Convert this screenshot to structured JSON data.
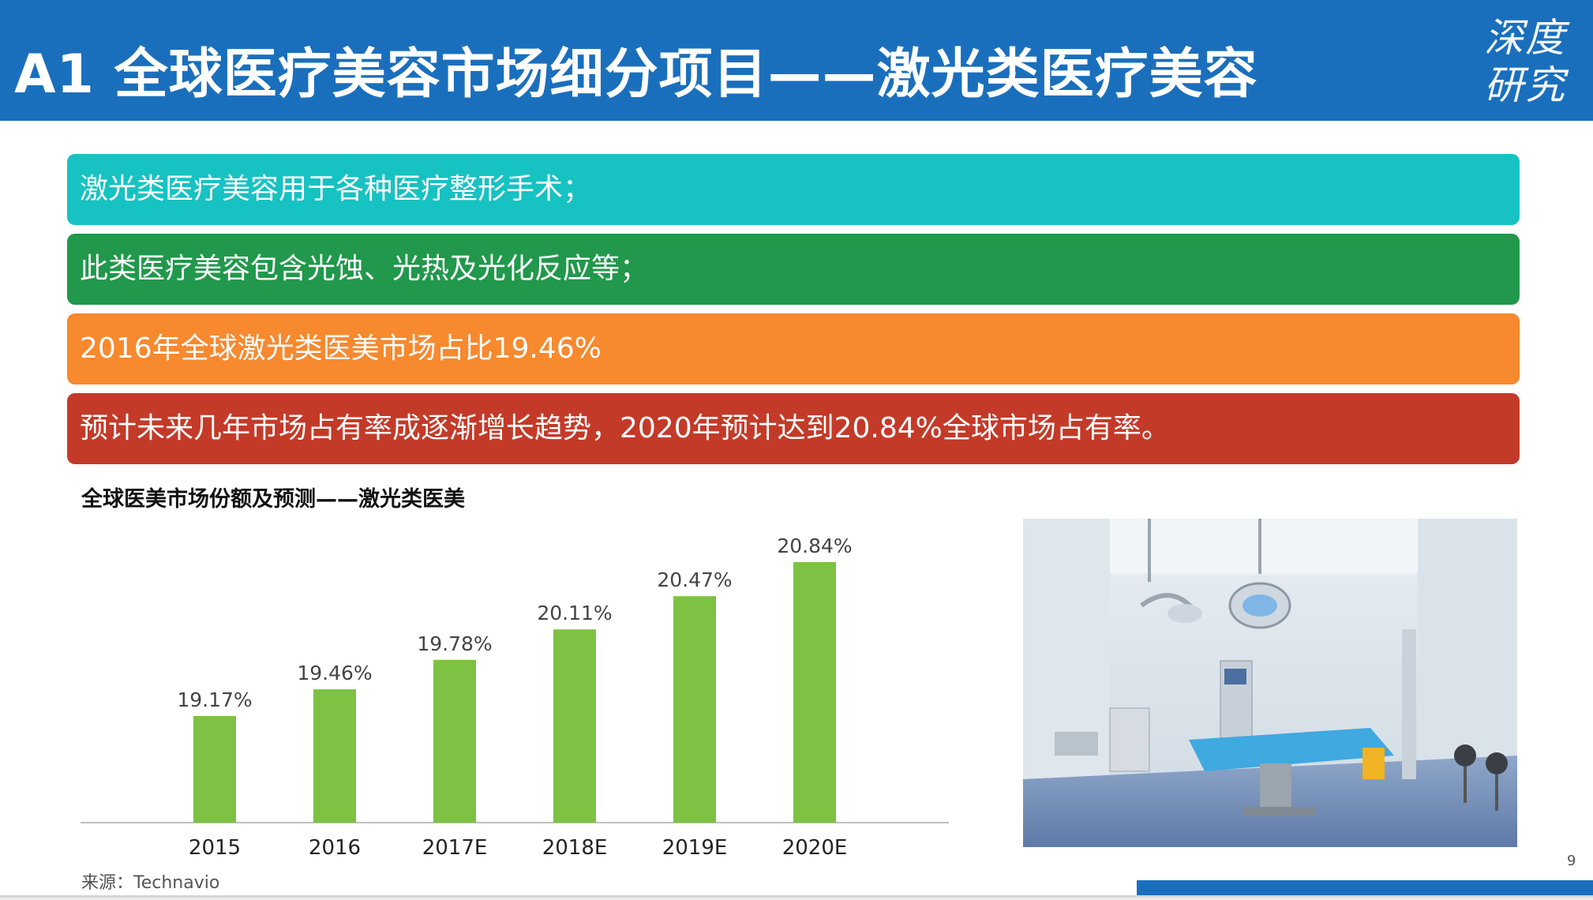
{
  "header": {
    "title": "A1 全球医疗美容市场细分项目——激光类医疗美容",
    "logo_line1": "深度",
    "logo_line2": "研究",
    "color": "#1a6fbd"
  },
  "bars": [
    {
      "text": "激光类医疗美容用于各种医疗整形手术；",
      "color": "#17c2c2"
    },
    {
      "text": "此类医疗美容包含光蚀、光热及光化反应等；",
      "color": "#21984b"
    },
    {
      "text": "2016年全球激光类医美市场占比19.46%",
      "color": "#f7892e"
    },
    {
      "text": "预计未来几年市场占有率成逐渐增长趋势，2020年预计达到20.84%全球市场占有率。",
      "color": "#c43a28"
    }
  ],
  "chart_data": {
    "type": "bar",
    "title": "全球医美市场份额及预测——激光类医美",
    "categories": [
      "2015",
      "2016",
      "2017E",
      "2018E",
      "2019E",
      "2020E"
    ],
    "values": [
      19.17,
      19.46,
      19.78,
      20.11,
      20.47,
      20.84
    ],
    "data_labels": [
      "19.17%",
      "19.46%",
      "19.78%",
      "20.11%",
      "20.47%",
      "20.84%"
    ],
    "bar_color": "#7dc242",
    "grid": false,
    "legend": "none"
  },
  "source": "来源：Technavio",
  "page_number": "9",
  "photo": {
    "icon": "operating-room-photo"
  }
}
